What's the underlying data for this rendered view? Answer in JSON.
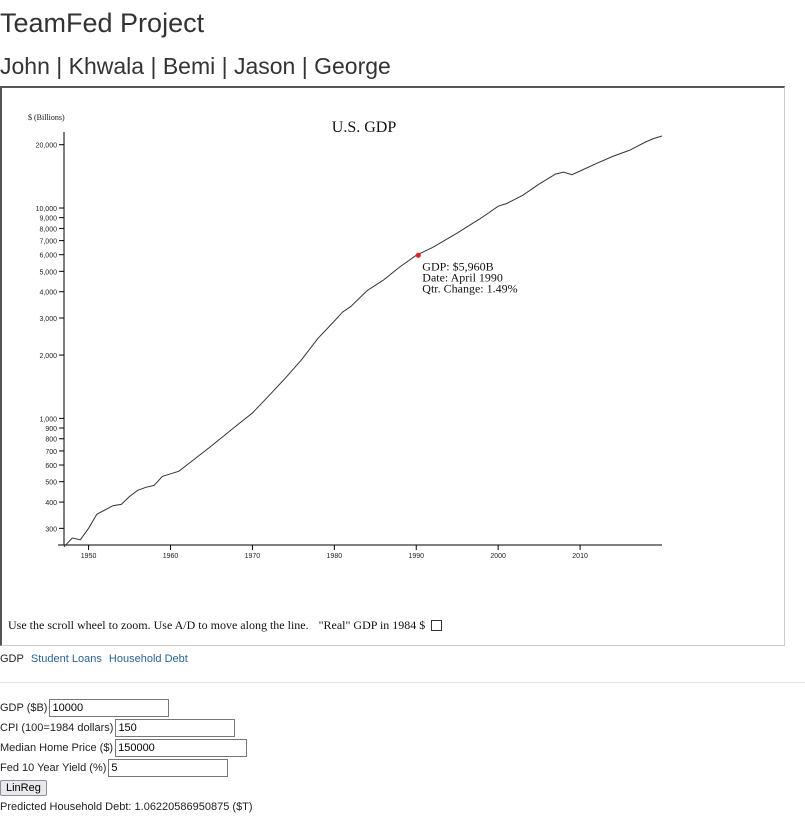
{
  "header": {
    "title": "TeamFed Project",
    "members": "John | Khwala | Bemi | Jason | George"
  },
  "chart_data": {
    "type": "line",
    "title": "U.S. GDP",
    "ylabel": "$ (Billions)",
    "xlabel": "",
    "y_scale": "log",
    "ylim": [
      250,
      22000
    ],
    "xlim": [
      1947,
      2020
    ],
    "x_ticks": [
      "1950",
      "1960",
      "1970",
      "1980",
      "1990",
      "2000",
      "2010"
    ],
    "y_ticks": [
      "300",
      "400",
      "500",
      "600",
      "700",
      "800",
      "900",
      "1,000",
      "2,000",
      "3,000",
      "4,000",
      "5,000",
      "6,000",
      "7,000",
      "8,000",
      "9,000",
      "10,000",
      "20,000"
    ],
    "series": [
      {
        "line_color": "#333333",
        "x": [
          1947,
          1948,
          1949,
          1950,
          1951,
          1953,
          1954,
          1955,
          1956,
          1957,
          1958,
          1959,
          1960,
          1961,
          1962,
          1965,
          1968,
          1970,
          1972,
          1974,
          1976,
          1978,
          1980,
          1981,
          1982,
          1984,
          1986,
          1988,
          1990,
          1992,
          1995,
          1998,
          2000,
          2001,
          2003,
          2005,
          2007,
          2008,
          2009,
          2010,
          2012,
          2014,
          2016,
          2018,
          2019,
          2020
        ],
        "y": [
          245,
          270,
          265,
          300,
          350,
          385,
          390,
          425,
          455,
          470,
          480,
          530,
          545,
          560,
          600,
          740,
          920,
          1060,
          1280,
          1550,
          1900,
          2400,
          2900,
          3200,
          3400,
          4050,
          4550,
          5250,
          5960,
          6500,
          7600,
          9000,
          10200,
          10500,
          11500,
          13000,
          14500,
          14800,
          14400,
          15000,
          16300,
          17600,
          18800,
          20600,
          21400,
          22000
        ]
      }
    ],
    "highlight": {
      "x": 1990.25,
      "y": 5960,
      "color": "#e02020"
    },
    "tooltip": {
      "gdp": "GDP: $5,960B",
      "date": "Date: April 1990",
      "change": "Qtr. Change: 1.49%"
    }
  },
  "instructions": {
    "text": "Use the scroll wheel to zoom. Use A/D to move along the line.",
    "real_label": "\"Real\" GDP in 1984 $"
  },
  "tabs": {
    "current": "GDP",
    "links": [
      "Student Loans",
      "Household Debt"
    ]
  },
  "form": {
    "gdp_label": "GDP ($B)",
    "gdp_value": "10000",
    "cpi_label": "CPI (100=1984 dollars)",
    "cpi_value": "150",
    "home_label": "Median Home Price ($)",
    "home_value": "150000",
    "yield_label": "Fed 10 Year Yield (%)",
    "yield_value": "5",
    "button_label": "LinReg",
    "result": "Predicted Household Debt: 1.06220586950875 ($T)"
  }
}
